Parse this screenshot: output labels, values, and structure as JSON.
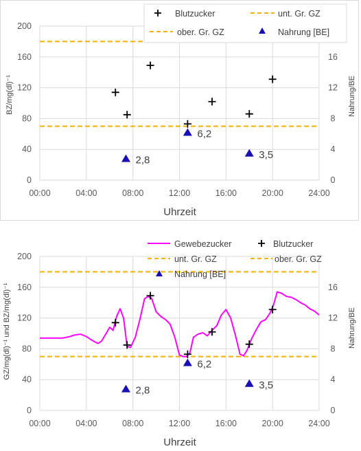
{
  "chart_data": [
    {
      "type": "scatter",
      "xlabel": "Uhrzeit",
      "ylabel": "BZ/mg(dl)⁻¹",
      "y2label": "Nahrung/BE",
      "xticks": [
        "00:00",
        "04:00",
        "08:00",
        "12:00",
        "16:00",
        "20:00",
        "24:00"
      ],
      "xlim": [
        0,
        24
      ],
      "ylim": [
        0,
        200
      ],
      "yticks": [
        "0",
        "40",
        "80",
        "120",
        "160",
        "200"
      ],
      "y2lim": [
        0,
        20
      ],
      "y2ticks": [
        "0",
        "4",
        "8",
        "12",
        "16"
      ],
      "legend": [
        "Blutzucker",
        "unt. Gr. GZ",
        "ober. Gr. GZ",
        "Nahrung [BE]"
      ],
      "legend_placement": "top-right",
      "colors": {
        "blutzucker": "#000000",
        "grenze": "#F5B000",
        "nahrung": "#1A0FB5"
      },
      "blutzucker": {
        "x": [
          6.5,
          7.5,
          9.5,
          12.7,
          14.8,
          18.0,
          20.0
        ],
        "y": [
          114,
          85,
          149,
          73,
          102,
          86,
          131
        ]
      },
      "lower_limit": 70,
      "upper_limit": 180,
      "nahrung": {
        "x": [
          7.4,
          12.7,
          18.0
        ],
        "y": [
          2.8,
          6.2,
          3.5
        ],
        "labels": [
          "2,8",
          "6,2",
          "3,5"
        ]
      }
    },
    {
      "type": "line",
      "xlabel": "Uhrzeit",
      "ylabel": "GZ/mg(dl)⁻¹ und BZ/mg(dl)⁻¹",
      "y2label": "Nahrung/BE",
      "xticks": [
        "00:00",
        "04:00",
        "08:00",
        "12:00",
        "16:00",
        "20:00",
        "24:00"
      ],
      "xlim": [
        0,
        24
      ],
      "ylim": [
        0,
        200
      ],
      "yticks": [
        "0",
        "40",
        "80",
        "120",
        "160",
        "200"
      ],
      "y2lim": [
        0,
        20
      ],
      "y2ticks": [
        "0",
        "4",
        "8",
        "12",
        "16"
      ],
      "legend": [
        "Gewebezucker",
        "Blutzucker",
        "unt. Gr. GZ",
        "ober. Gr. GZ",
        "Nahrung [BE]"
      ],
      "legend_placement": "top-right",
      "colors": {
        "gewebezucker": "#FF00FF",
        "blutzucker": "#000000",
        "grenze": "#F5B000",
        "nahrung": "#1A0FB5"
      },
      "gewebezucker": {
        "x": [
          0,
          1,
          2,
          2.6,
          3,
          3.5,
          4,
          4.5,
          5,
          5.3,
          5.7,
          6,
          6.3,
          6.6,
          6.9,
          7.2,
          7.5,
          7.8,
          8.2,
          8.6,
          9,
          9.3,
          9.6,
          10,
          10.4,
          10.8,
          11.2,
          11.6,
          12,
          12.3,
          12.6,
          12.9,
          13.2,
          13.6,
          14,
          14.4,
          14.8,
          15.2,
          15.6,
          16,
          16.4,
          16.8,
          17.2,
          17.5,
          17.8,
          18.2,
          18.6,
          19,
          19.4,
          19.8,
          20.1,
          20.4,
          20.8,
          21.2,
          21.6,
          22,
          22.4,
          22.8,
          23.2,
          23.6,
          24
        ],
        "y": [
          94,
          94,
          94,
          96,
          98,
          99,
          96,
          91,
          87,
          90,
          100,
          108,
          104,
          122,
          132,
          120,
          83,
          82,
          95,
          118,
          145,
          148,
          146,
          128,
          122,
          118,
          112,
          95,
          72,
          70,
          70,
          75,
          95,
          99,
          101,
          97,
          104,
          110,
          124,
          131,
          120,
          98,
          73,
          71,
          78,
          93,
          105,
          115,
          118,
          127,
          138,
          154,
          152,
          148,
          147,
          144,
          140,
          137,
          132,
          129,
          124
        ]
      },
      "blutzucker": {
        "x": [
          6.5,
          7.5,
          9.5,
          12.7,
          14.8,
          18.0,
          20.0
        ],
        "y": [
          114,
          85,
          149,
          73,
          102,
          86,
          131
        ]
      },
      "lower_limit": 70,
      "upper_limit": 180,
      "nahrung": {
        "x": [
          7.4,
          12.7,
          18.0
        ],
        "y": [
          2.8,
          6.2,
          3.5
        ],
        "labels": [
          "2,8",
          "6,2",
          "3,5"
        ]
      }
    }
  ]
}
